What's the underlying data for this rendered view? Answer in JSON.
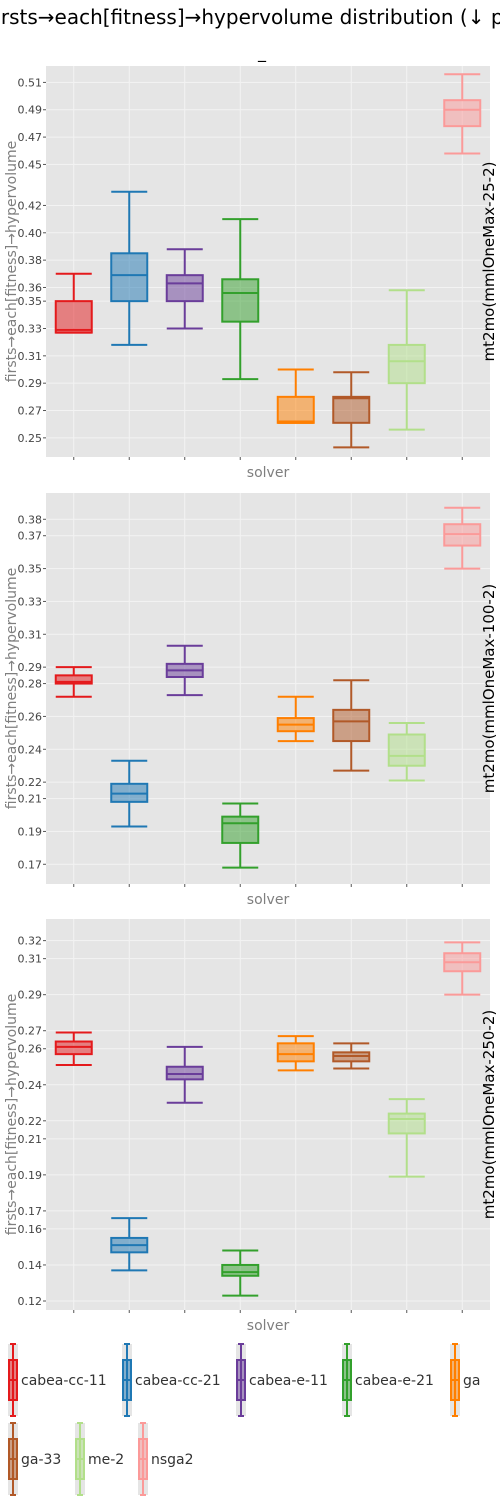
{
  "title": "firsts→each[fitness]→hypervolume distribution (↓ pr",
  "subtitle": "_",
  "colors": {
    "panel_bg": "#e5e5e5",
    "grid": "#f3f3f3",
    "axis_text": "#444444",
    "axis_label": "#7f7f7f",
    "solver_colors": {
      "cabea-cc-11": "#e41a1c",
      "cabea-cc-21": "#1f78b4",
      "cabea-e-11": "#6a3d9a",
      "cabea-e-21": "#33a02c",
      "ga": "#ff7f00",
      "ga-33": "#b15928",
      "me-2": "#b2df8a",
      "nsga2": "#fb9a99"
    }
  },
  "chart_data": [
    {
      "type": "box",
      "facet": "mt2mo(mmlOneMax-25-2)",
      "xlabel": "solver",
      "ylabel": "firsts→each[fitness]→hypervolume",
      "ylim": [
        0.236,
        0.522
      ],
      "yticks": [
        0.25,
        0.27,
        0.29,
        0.31,
        0.33,
        0.35,
        0.36,
        0.38,
        0.4,
        0.42,
        0.45,
        0.47,
        0.49,
        0.51
      ],
      "ytick_labels": [
        "0.25",
        "0.27",
        "0.29",
        "0.31",
        "0.33",
        "0.35",
        "0.36",
        "0.38",
        "0.40",
        "0.42",
        "0.45",
        "0.47",
        "0.49",
        "0.51"
      ],
      "series": [
        {
          "solver": "cabea-cc-11",
          "min": 0.327,
          "q1": 0.327,
          "median": 0.329,
          "q3": 0.35,
          "max": 0.37
        },
        {
          "solver": "cabea-cc-21",
          "min": 0.318,
          "q1": 0.35,
          "median": 0.369,
          "q3": 0.385,
          "max": 0.43
        },
        {
          "solver": "cabea-e-11",
          "min": 0.33,
          "q1": 0.35,
          "median": 0.363,
          "q3": 0.369,
          "max": 0.388
        },
        {
          "solver": "cabea-e-21",
          "min": 0.293,
          "q1": 0.335,
          "median": 0.356,
          "q3": 0.366,
          "max": 0.41
        },
        {
          "solver": "ga",
          "min": 0.261,
          "q1": 0.261,
          "median": 0.262,
          "q3": 0.28,
          "max": 0.3
        },
        {
          "solver": "ga-33",
          "min": 0.243,
          "q1": 0.261,
          "median": 0.279,
          "q3": 0.28,
          "max": 0.298
        },
        {
          "solver": "me-2",
          "min": 0.256,
          "q1": 0.29,
          "median": 0.306,
          "q3": 0.318,
          "max": 0.358
        },
        {
          "solver": "nsga2",
          "min": 0.458,
          "q1": 0.478,
          "median": 0.49,
          "q3": 0.497,
          "max": 0.516
        }
      ]
    },
    {
      "type": "box",
      "facet": "mt2mo(mmlOneMax-100-2)",
      "xlabel": "solver",
      "ylabel": "firsts→each[fitness]→hypervolume",
      "ylim": [
        0.158,
        0.396
      ],
      "yticks": [
        0.17,
        0.19,
        0.21,
        0.22,
        0.24,
        0.26,
        0.28,
        0.29,
        0.31,
        0.33,
        0.35,
        0.37,
        0.38
      ],
      "ytick_labels": [
        "0.17",
        "0.19",
        "0.21",
        "0.22",
        "0.24",
        "0.26",
        "0.28",
        "0.29",
        "0.31",
        "0.33",
        "0.35",
        "0.37",
        "0.38"
      ],
      "series": [
        {
          "solver": "cabea-cc-11",
          "min": 0.272,
          "q1": 0.28,
          "median": 0.281,
          "q3": 0.285,
          "max": 0.29
        },
        {
          "solver": "cabea-cc-21",
          "min": 0.193,
          "q1": 0.208,
          "median": 0.213,
          "q3": 0.219,
          "max": 0.233
        },
        {
          "solver": "cabea-e-11",
          "min": 0.273,
          "q1": 0.284,
          "median": 0.288,
          "q3": 0.292,
          "max": 0.303
        },
        {
          "solver": "cabea-e-21",
          "min": 0.168,
          "q1": 0.183,
          "median": 0.195,
          "q3": 0.199,
          "max": 0.207
        },
        {
          "solver": "ga",
          "min": 0.245,
          "q1": 0.251,
          "median": 0.255,
          "q3": 0.259,
          "max": 0.272
        },
        {
          "solver": "ga-33",
          "min": 0.227,
          "q1": 0.245,
          "median": 0.257,
          "q3": 0.264,
          "max": 0.282
        },
        {
          "solver": "me-2",
          "min": 0.221,
          "q1": 0.23,
          "median": 0.236,
          "q3": 0.249,
          "max": 0.256
        },
        {
          "solver": "nsga2",
          "min": 0.35,
          "q1": 0.364,
          "median": 0.371,
          "q3": 0.377,
          "max": 0.387
        }
      ]
    },
    {
      "type": "box",
      "facet": "mt2mo(mmlOneMax-250-2)",
      "xlabel": "solver",
      "ylabel": "firsts→each[fitness]→hypervolume",
      "ylim": [
        0.115,
        0.332
      ],
      "yticks": [
        0.12,
        0.14,
        0.16,
        0.17,
        0.19,
        0.21,
        0.22,
        0.24,
        0.26,
        0.27,
        0.29,
        0.31,
        0.32
      ],
      "ytick_labels": [
        "0.12",
        "0.14",
        "0.16",
        "0.17",
        "0.19",
        "0.21",
        "0.22",
        "0.24",
        "0.26",
        "0.27",
        "0.29",
        "0.31",
        "0.32"
      ],
      "series": [
        {
          "solver": "cabea-cc-11",
          "min": 0.251,
          "q1": 0.257,
          "median": 0.261,
          "q3": 0.264,
          "max": 0.269
        },
        {
          "solver": "cabea-cc-21",
          "min": 0.137,
          "q1": 0.147,
          "median": 0.151,
          "q3": 0.155,
          "max": 0.166
        },
        {
          "solver": "cabea-e-11",
          "min": 0.23,
          "q1": 0.243,
          "median": 0.246,
          "q3": 0.25,
          "max": 0.261
        },
        {
          "solver": "cabea-e-21",
          "min": 0.123,
          "q1": 0.134,
          "median": 0.136,
          "q3": 0.14,
          "max": 0.148
        },
        {
          "solver": "ga",
          "min": 0.248,
          "q1": 0.253,
          "median": 0.257,
          "q3": 0.263,
          "max": 0.267
        },
        {
          "solver": "ga-33",
          "min": 0.249,
          "q1": 0.253,
          "median": 0.256,
          "q3": 0.258,
          "max": 0.263
        },
        {
          "solver": "me-2",
          "min": 0.189,
          "q1": 0.213,
          "median": 0.221,
          "q3": 0.224,
          "max": 0.232
        },
        {
          "solver": "nsga2",
          "min": 0.29,
          "q1": 0.303,
          "median": 0.308,
          "q3": 0.313,
          "max": 0.319
        }
      ]
    }
  ],
  "legend": {
    "entries": [
      "cabea-cc-11",
      "cabea-cc-21",
      "cabea-e-11",
      "cabea-e-21",
      "ga",
      "ga-33",
      "me-2",
      "nsga2"
    ],
    "placement": "bottom"
  }
}
